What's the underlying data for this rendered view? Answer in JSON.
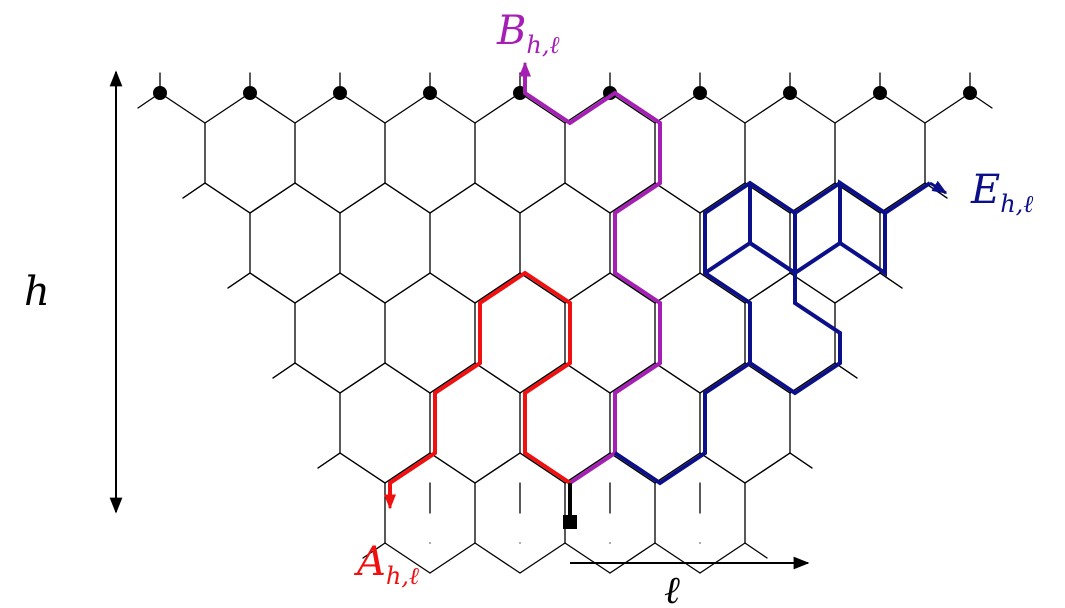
{
  "labels": {
    "top": "B",
    "top_sub": "h,ℓ",
    "right": "E",
    "right_sub": "h,ℓ",
    "bottom": "A",
    "bottom_sub": "h,ℓ",
    "height": "h",
    "width": "ℓ"
  },
  "colors": {
    "lattice": "#000000",
    "top_path": "#a51fb5",
    "right_path": "#0b0f8a",
    "bottom_path": "#f01010"
  }
}
